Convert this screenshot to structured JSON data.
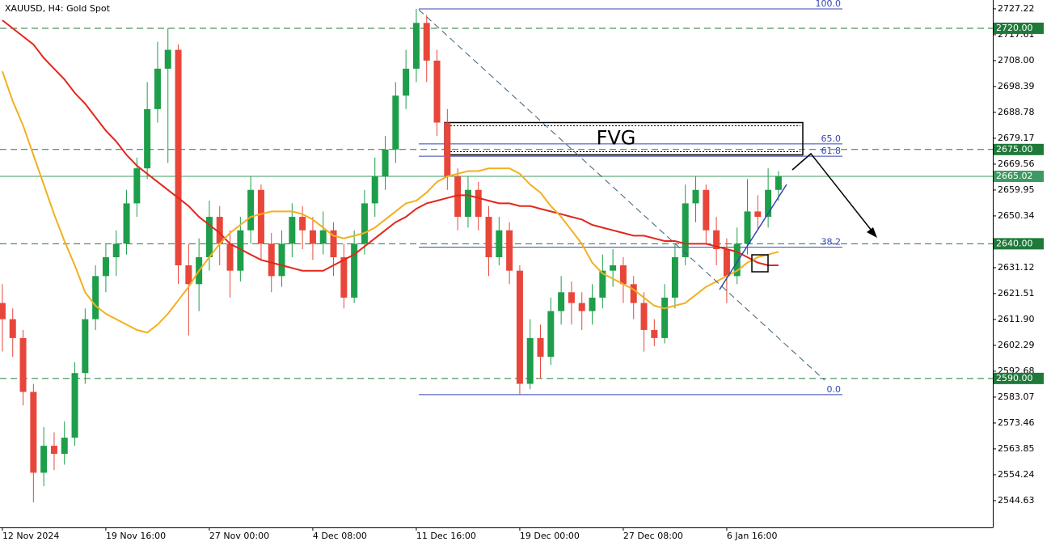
{
  "chart_data": {
    "type": "candlestick",
    "title": "XAUUSD, H4:  Gold Spot",
    "categories": [
      "12 Nov 2024",
      null,
      null,
      null,
      null,
      null,
      null,
      null,
      null,
      null,
      "19 Nov 16:00",
      null,
      null,
      null,
      null,
      null,
      null,
      null,
      null,
      null,
      "27 Nov 00:00",
      null,
      null,
      null,
      null,
      null,
      null,
      null,
      null,
      null,
      "4 Dec 08:00",
      null,
      null,
      null,
      null,
      null,
      null,
      null,
      null,
      null,
      "11 Dec 16:00",
      null,
      null,
      null,
      null,
      null,
      null,
      null,
      null,
      null,
      "19 Dec 00:00",
      null,
      null,
      null,
      null,
      null,
      null,
      null,
      null,
      null,
      "27 Dec 08:00",
      null,
      null,
      null,
      null,
      null,
      null,
      null,
      null,
      null,
      "6 Jan 16:00",
      null,
      null,
      null,
      null,
      null
    ],
    "open": [
      2618,
      2612,
      2605,
      2585,
      2555,
      2565,
      2562,
      2568,
      2592,
      2612,
      2628,
      2635,
      2640,
      2655,
      2668,
      2690,
      2705,
      2712,
      2632,
      2625,
      2635,
      2650,
      2640,
      2630,
      2645,
      2660,
      2640,
      2628,
      2640,
      2650,
      2645,
      2640,
      2645,
      2635,
      2620,
      2640,
      2655,
      2665,
      2675,
      2695,
      2705,
      2722,
      2708,
      2685,
      2665,
      2650,
      2660,
      2650,
      2635,
      2645,
      2630,
      2588,
      2605,
      2598,
      2615,
      2622,
      2618,
      2615,
      2620,
      2630,
      2632,
      2625,
      2618,
      2608,
      2605,
      2620,
      2635,
      2655,
      2660,
      2645,
      2638,
      2628,
      2640,
      2652,
      2650,
      2660
    ],
    "high": [
      2625,
      2616,
      2608,
      2588,
      2572,
      2570,
      2574,
      2596,
      2616,
      2632,
      2640,
      2645,
      2660,
      2672,
      2700,
      2715,
      2720,
      2714,
      2640,
      2642,
      2656,
      2654,
      2645,
      2650,
      2665,
      2662,
      2644,
      2645,
      2655,
      2654,
      2650,
      2652,
      2648,
      2640,
      2645,
      2660,
      2672,
      2680,
      2700,
      2712,
      2727.2,
      2725,
      2712,
      2690,
      2668,
      2665,
      2663,
      2654,
      2650,
      2648,
      2632,
      2612,
      2610,
      2620,
      2628,
      2626,
      2622,
      2625,
      2636,
      2638,
      2635,
      2628,
      2622,
      2612,
      2625,
      2640,
      2662,
      2665,
      2662,
      2650,
      2642,
      2646,
      2664,
      2658,
      2668,
      2667
    ],
    "low": [
      2600,
      2598,
      2580,
      2544,
      2550,
      2556,
      2558,
      2565,
      2588,
      2608,
      2622,
      2628,
      2636,
      2650,
      2664,
      2685,
      2670,
      2625,
      2606,
      2615,
      2630,
      2632,
      2620,
      2626,
      2640,
      2634,
      2622,
      2624,
      2635,
      2638,
      2634,
      2636,
      2628,
      2616,
      2618,
      2636,
      2650,
      2660,
      2670,
      2690,
      2700,
      2700,
      2680,
      2660,
      2645,
      2646,
      2645,
      2628,
      2632,
      2625,
      2584,
      2586,
      2590,
      2595,
      2610,
      2610,
      2608,
      2610,
      2616,
      2624,
      2618,
      2612,
      2600,
      2602,
      2603,
      2616,
      2632,
      2648,
      2640,
      2632,
      2618,
      2625,
      2636,
      2645,
      2646,
      2656
    ],
    "close": [
      2612,
      2605,
      2585,
      2555,
      2565,
      2562,
      2568,
      2592,
      2612,
      2628,
      2635,
      2640,
      2655,
      2668,
      2690,
      2705,
      2712,
      2632,
      2625,
      2635,
      2650,
      2640,
      2630,
      2645,
      2660,
      2640,
      2628,
      2640,
      2650,
      2645,
      2640,
      2645,
      2635,
      2620,
      2640,
      2655,
      2665,
      2675,
      2695,
      2705,
      2722,
      2708,
      2685,
      2665,
      2650,
      2660,
      2650,
      2635,
      2645,
      2630,
      2588,
      2605,
      2598,
      2615,
      2622,
      2618,
      2615,
      2620,
      2630,
      2632,
      2625,
      2618,
      2608,
      2605,
      2620,
      2635,
      2655,
      2660,
      2645,
      2638,
      2628,
      2640,
      2652,
      2650,
      2660,
      2665.02
    ],
    "up_color": "#1e9e4a",
    "down_color": "#e8463a",
    "lines": [
      {
        "color": "#e3261c",
        "values": [
          2723,
          2720,
          2717,
          2714,
          2709,
          2705,
          2701,
          2696,
          2692,
          2687,
          2682,
          2678,
          2673,
          2669,
          2666,
          2663,
          2660,
          2657,
          2654,
          2650,
          2647,
          2644,
          2640,
          2638,
          2636,
          2634,
          2633,
          2632,
          2631,
          2630,
          2630,
          2630,
          2632,
          2634,
          2636,
          2639,
          2642,
          2645,
          2648,
          2650,
          2653,
          2655,
          2656,
          2657,
          2658,
          2658,
          2657,
          2656,
          2655,
          2655,
          2654,
          2654,
          2653,
          2652,
          2651,
          2650,
          2649,
          2647,
          2646,
          2645,
          2644,
          2643,
          2643,
          2642,
          2641,
          2641,
          2640,
          2640,
          2640,
          2639,
          2638,
          2637,
          2635,
          2633,
          2632,
          2632
        ]
      },
      {
        "color": "#f2b01e",
        "values": [
          2704,
          2693,
          2684,
          2673,
          2662,
          2651,
          2641,
          2632,
          2622,
          2617,
          2614,
          2612,
          2610,
          2608,
          2607,
          2610,
          2614,
          2619,
          2624,
          2630,
          2635,
          2640,
          2644,
          2647,
          2650,
          2651,
          2652,
          2652,
          2652,
          2651,
          2649,
          2646,
          2643,
          2642,
          2643,
          2644,
          2646,
          2649,
          2652,
          2655,
          2656,
          2659,
          2663,
          2665,
          2666,
          2667,
          2667,
          2668,
          2668,
          2668,
          2666,
          2662,
          2659,
          2654,
          2650,
          2645,
          2640,
          2633,
          2629,
          2627,
          2625,
          2623,
          2620,
          2617,
          2616,
          2617,
          2618,
          2621,
          2624,
          2626,
          2628,
          2630,
          2633,
          2635,
          2636,
          2637
        ]
      }
    ],
    "xlim": [
      -0.23,
      95.71
    ],
    "ylim": [
      2534.7,
      2730.5
    ],
    "yticks": [
      2727.22,
      2717.61,
      {
        "value": 2708,
        "label": "2708.00"
      },
      2698.39,
      2688.78,
      2679.17,
      2669.56,
      2659.95,
      2650.34,
      2631.12,
      2621.51,
      {
        "value": 2611.9,
        "label": "2611.90"
      },
      2602.29,
      2592.68,
      2583.07,
      2573.46,
      2563.85,
      2554.24,
      2544.63
    ],
    "levels": [
      {
        "value": 2720,
        "label": "2720.00"
      },
      {
        "value": 2675,
        "label": "2675.00"
      },
      {
        "value": 2640,
        "label": "2640.00"
      },
      {
        "value": 2590,
        "label": "2590.00"
      }
    ],
    "levels_color": "#1f7a3a",
    "current_price": 2665.02,
    "current_color": "#3c9a62",
    "fibonacci": {
      "color": "#3446b0",
      "levels": [
        {
          "label": "100.0",
          "price": 2727.2
        },
        {
          "label": "65.0",
          "price": 2677.1
        },
        {
          "label": "61.8",
          "price": 2672.5
        },
        {
          "label": "38.2",
          "price": 2638.7
        },
        {
          "label": "0.0",
          "price": 2584
        }
      ]
    },
    "fvg": {
      "label": "FVG",
      "top": 2685,
      "bottom": 2673
    }
  }
}
